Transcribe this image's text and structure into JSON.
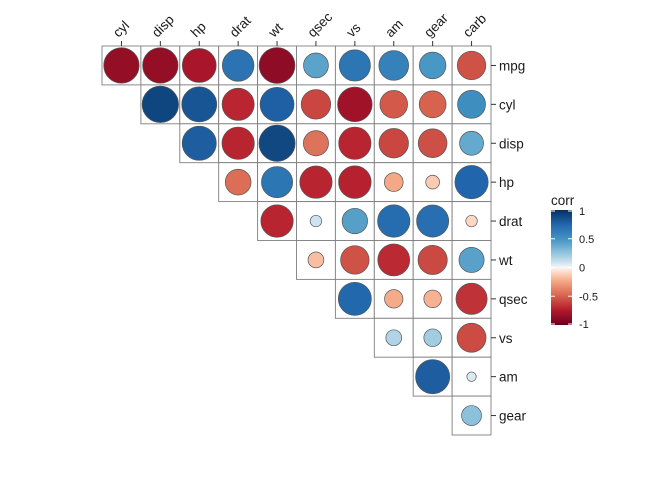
{
  "chart_data": {
    "type": "heatmap",
    "style": "upper-triangle correlation matrix with circles (size and color encode correlation)",
    "x_labels": [
      "cyl",
      "disp",
      "hp",
      "drat",
      "wt",
      "qsec",
      "vs",
      "am",
      "gear",
      "carb"
    ],
    "y_labels": [
      "mpg",
      "cyl",
      "disp",
      "hp",
      "drat",
      "wt",
      "qsec",
      "vs",
      "am",
      "gear"
    ],
    "cells": [
      {
        "row": "mpg",
        "col": "cyl",
        "value": -0.85
      },
      {
        "row": "mpg",
        "col": "disp",
        "value": -0.85
      },
      {
        "row": "mpg",
        "col": "hp",
        "value": -0.78
      },
      {
        "row": "mpg",
        "col": "drat",
        "value": 0.68
      },
      {
        "row": "mpg",
        "col": "wt",
        "value": -0.87
      },
      {
        "row": "mpg",
        "col": "qsec",
        "value": 0.42
      },
      {
        "row": "mpg",
        "col": "vs",
        "value": 0.66
      },
      {
        "row": "mpg",
        "col": "am",
        "value": 0.6
      },
      {
        "row": "mpg",
        "col": "gear",
        "value": 0.48
      },
      {
        "row": "mpg",
        "col": "carb",
        "value": -0.55
      },
      {
        "row": "cyl",
        "col": "disp",
        "value": 0.9
      },
      {
        "row": "cyl",
        "col": "hp",
        "value": 0.83
      },
      {
        "row": "cyl",
        "col": "drat",
        "value": -0.7
      },
      {
        "row": "cyl",
        "col": "wt",
        "value": 0.78
      },
      {
        "row": "cyl",
        "col": "qsec",
        "value": -0.59
      },
      {
        "row": "cyl",
        "col": "vs",
        "value": -0.81
      },
      {
        "row": "cyl",
        "col": "am",
        "value": -0.52
      },
      {
        "row": "cyl",
        "col": "gear",
        "value": -0.49
      },
      {
        "row": "cyl",
        "col": "carb",
        "value": 0.53
      },
      {
        "row": "disp",
        "col": "hp",
        "value": 0.79
      },
      {
        "row": "disp",
        "col": "drat",
        "value": -0.71
      },
      {
        "row": "disp",
        "col": "wt",
        "value": 0.89
      },
      {
        "row": "disp",
        "col": "qsec",
        "value": -0.43
      },
      {
        "row": "disp",
        "col": "vs",
        "value": -0.71
      },
      {
        "row": "disp",
        "col": "am",
        "value": -0.59
      },
      {
        "row": "disp",
        "col": "gear",
        "value": -0.56
      },
      {
        "row": "disp",
        "col": "carb",
        "value": 0.39
      },
      {
        "row": "hp",
        "col": "drat",
        "value": -0.45
      },
      {
        "row": "hp",
        "col": "wt",
        "value": 0.66
      },
      {
        "row": "hp",
        "col": "qsec",
        "value": -0.71
      },
      {
        "row": "hp",
        "col": "vs",
        "value": -0.72
      },
      {
        "row": "hp",
        "col": "am",
        "value": -0.24
      },
      {
        "row": "hp",
        "col": "gear",
        "value": -0.13
      },
      {
        "row": "hp",
        "col": "carb",
        "value": 0.75
      },
      {
        "row": "drat",
        "col": "wt",
        "value": -0.71
      },
      {
        "row": "drat",
        "col": "qsec",
        "value": 0.09
      },
      {
        "row": "drat",
        "col": "vs",
        "value": 0.44
      },
      {
        "row": "drat",
        "col": "am",
        "value": 0.71
      },
      {
        "row": "drat",
        "col": "gear",
        "value": 0.7
      },
      {
        "row": "drat",
        "col": "carb",
        "value": -0.09
      },
      {
        "row": "wt",
        "col": "qsec",
        "value": -0.17
      },
      {
        "row": "wt",
        "col": "vs",
        "value": -0.55
      },
      {
        "row": "wt",
        "col": "am",
        "value": -0.69
      },
      {
        "row": "wt",
        "col": "gear",
        "value": -0.58
      },
      {
        "row": "wt",
        "col": "carb",
        "value": 0.43
      },
      {
        "row": "qsec",
        "col": "vs",
        "value": 0.74
      },
      {
        "row": "qsec",
        "col": "am",
        "value": -0.23
      },
      {
        "row": "qsec",
        "col": "gear",
        "value": -0.21
      },
      {
        "row": "qsec",
        "col": "carb",
        "value": -0.66
      },
      {
        "row": "vs",
        "col": "am",
        "value": 0.17
      },
      {
        "row": "vs",
        "col": "gear",
        "value": 0.21
      },
      {
        "row": "vs",
        "col": "carb",
        "value": -0.57
      },
      {
        "row": "am",
        "col": "gear",
        "value": 0.79
      },
      {
        "row": "am",
        "col": "carb",
        "value": 0.06
      },
      {
        "row": "gear",
        "col": "carb",
        "value": 0.27
      }
    ],
    "color_scale": {
      "low": "#67001f",
      "low_mid": "#d6604d",
      "mid": "#f7f7f7",
      "high_mid": "#4393c3",
      "high": "#053061",
      "range": [
        -1,
        1
      ]
    },
    "legend": {
      "title": "corr",
      "placement": "right",
      "tick_values": [
        1,
        0.5,
        0,
        -0.5,
        -1
      ],
      "tick_labels": [
        "1",
        "0.5",
        "0",
        "-0.5",
        "-1"
      ]
    }
  }
}
